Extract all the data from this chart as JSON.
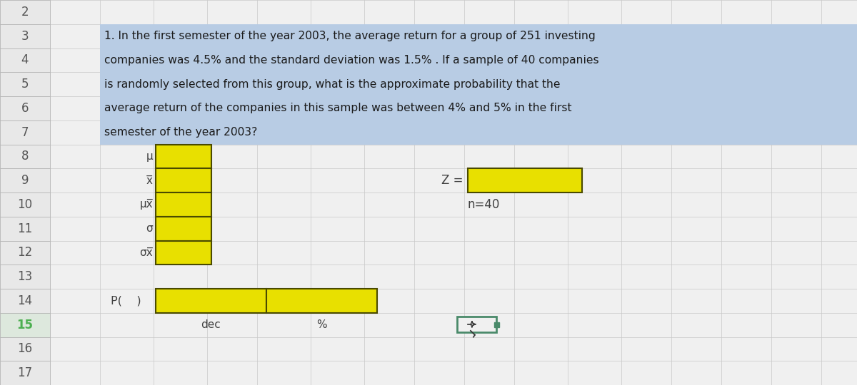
{
  "bg_color": "#f0f0f0",
  "grid_color": "#c8c8c8",
  "row_header_bg": "#e8e8e8",
  "row_header_border": "#b0b0b0",
  "question_bg": "#b8cce4",
  "yellow_fill": "#e8e000",
  "cell_border": "#4a4a00",
  "text_color": "#404040",
  "question_text_lines": [
    "1. In the first semester of the year 2003, the average return for a group of 251 investing",
    "companies was 4.5% and the standard deviation was 1.5% . If a sample of 40 companies",
    "is randomly selected from this group, what is the approximate probability that the",
    "average return of the companies in this sample was between 4% and 5% in the first",
    "semester of the year 2003?"
  ],
  "stats_labels": [
    "μ",
    "x̅",
    "μx̅",
    "σ",
    "σx̅"
  ],
  "stats_rows": [
    8,
    9,
    10,
    11,
    12
  ],
  "label_Z": "Z =",
  "label_n40": "n=40",
  "label_P": "P(    )",
  "label_dec": "dec",
  "label_pct": "%",
  "resize_box_color": "#4a8a6a",
  "row_15_color": "#4caf50"
}
